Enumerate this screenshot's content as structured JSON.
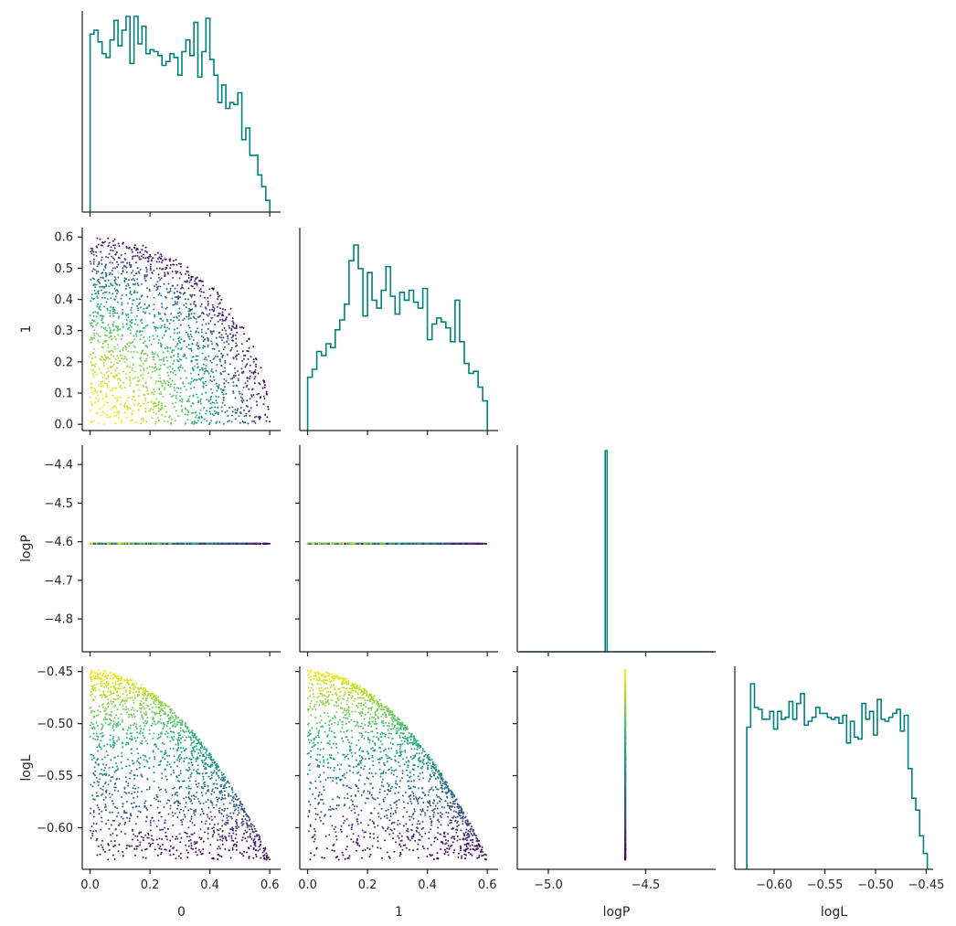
{
  "chart_data": {
    "type": "corner-plot",
    "parameters": [
      "0",
      "1",
      "logP",
      "logL"
    ],
    "grid": false,
    "colormap": "viridis",
    "color_by": "logL",
    "hist_color": "#008080",
    "ranges": {
      "0": [
        -0.02,
        0.63
      ],
      "1": [
        -0.02,
        0.63
      ],
      "logP": [
        -4.885,
        -4.35
      ],
      "logL": [
        -0.64,
        -0.445
      ],
      "logP_hist_x": [
        -5.15,
        -4.15
      ],
      "logL_hist_x": [
        -0.637,
        -0.445
      ]
    },
    "ticks": {
      "0_x": [
        {
          "v": 0.0,
          "label": "0.0"
        },
        {
          "v": 0.2,
          "label": "0.2"
        },
        {
          "v": 0.4,
          "label": "0.4"
        },
        {
          "v": 0.6,
          "label": "0.6"
        }
      ],
      "1_x": [
        {
          "v": 0.0,
          "label": "0.0"
        },
        {
          "v": 0.2,
          "label": "0.2"
        },
        {
          "v": 0.4,
          "label": "0.4"
        },
        {
          "v": 0.6,
          "label": "0.6"
        }
      ],
      "logP_x": [
        {
          "v": -5.0,
          "label": "−5.0"
        },
        {
          "v": -4.5,
          "label": "−4.5"
        }
      ],
      "logL_x": [
        {
          "v": -0.6,
          "label": "−0.60"
        },
        {
          "v": -0.55,
          "label": "−0.55"
        },
        {
          "v": -0.5,
          "label": "−0.50"
        },
        {
          "v": -0.45,
          "label": "−0.45"
        }
      ],
      "1_y": [
        {
          "v": 0.0,
          "label": "0.0"
        },
        {
          "v": 0.1,
          "label": "0.1"
        },
        {
          "v": 0.2,
          "label": "0.2"
        },
        {
          "v": 0.3,
          "label": "0.3"
        },
        {
          "v": 0.4,
          "label": "0.4"
        },
        {
          "v": 0.5,
          "label": "0.5"
        },
        {
          "v": 0.6,
          "label": "0.6"
        }
      ],
      "logP_y": [
        {
          "v": -4.4,
          "label": "−4.4"
        },
        {
          "v": -4.5,
          "label": "−4.5"
        },
        {
          "v": -4.6,
          "label": "−4.6"
        },
        {
          "v": -4.7,
          "label": "−4.7"
        },
        {
          "v": -4.8,
          "label": "−4.8"
        }
      ],
      "logL_y": [
        {
          "v": -0.45,
          "label": "−0.45"
        },
        {
          "v": -0.5,
          "label": "−0.50"
        },
        {
          "v": -0.55,
          "label": "−0.55"
        },
        {
          "v": -0.6,
          "label": "−0.60"
        }
      ]
    },
    "xlabels": [
      "0",
      "1",
      "logP",
      "logL"
    ],
    "ylabels": [
      "",
      "1",
      "logP",
      "logL"
    ],
    "logP_value": -4.605,
    "histograms": {
      "0": {
        "range": [
          0.0,
          0.6
        ],
        "rel_heights": [
          0.91,
          0.93,
          0.87,
          0.81,
          0.79,
          0.88,
          0.98,
          0.85,
          0.93,
          1.0,
          0.76,
          1.0,
          0.86,
          0.95,
          0.81,
          0.83,
          0.82,
          0.8,
          0.75,
          0.77,
          0.81,
          0.79,
          0.7,
          0.82,
          0.88,
          0.8,
          0.97,
          0.69,
          0.82,
          0.99,
          0.78,
          0.7,
          0.56,
          0.65,
          0.53,
          0.56,
          0.55,
          0.61,
          0.37,
          0.43,
          0.29,
          0.29,
          0.19,
          0.13,
          0.06
        ]
      },
      "1": {
        "range": [
          0.0,
          0.6
        ],
        "rel_heights": [
          0.27,
          0.31,
          0.4,
          0.38,
          0.44,
          0.42,
          0.51,
          0.56,
          0.64,
          0.86,
          0.94,
          0.82,
          0.58,
          0.8,
          0.66,
          0.62,
          0.71,
          0.83,
          0.68,
          0.59,
          0.7,
          0.66,
          0.71,
          0.65,
          0.62,
          0.72,
          0.46,
          0.54,
          0.57,
          0.55,
          0.52,
          0.45,
          0.66,
          0.45,
          0.34,
          0.29,
          0.3,
          0.22,
          0.15
        ]
      },
      "logP": {
        "range": [
          -5.15,
          -4.15
        ],
        "rel_heights": [
          0,
          0,
          0,
          0,
          0,
          0,
          0,
          0,
          0,
          0,
          0,
          0,
          0,
          0,
          0,
          0,
          0,
          0,
          0,
          0,
          0,
          0,
          0,
          0,
          0,
          0,
          0,
          0,
          0,
          0,
          0,
          0,
          0,
          0,
          0,
          0,
          0,
          0,
          0,
          0,
          0,
          0,
          0,
          0,
          0,
          0,
          1,
          0,
          0,
          0,
          0,
          0,
          0,
          0,
          0,
          0,
          0,
          0,
          0,
          0,
          0,
          0,
          0,
          0,
          0,
          0,
          0,
          0,
          0,
          0,
          0,
          0,
          0,
          0,
          0,
          0,
          0,
          0,
          0,
          0,
          0,
          0,
          0,
          0,
          0,
          0,
          0,
          0,
          0,
          0,
          0,
          0,
          0,
          0,
          0,
          0,
          0,
          0,
          0,
          0,
          0,
          0,
          0,
          0
        ]
      },
      "logL": {
        "range": [
          -0.627,
          -0.449
        ],
        "rel_heights": [
          0.72,
          0.94,
          0.82,
          0.81,
          0.76,
          0.76,
          0.8,
          0.71,
          0.8,
          0.76,
          0.77,
          0.85,
          0.76,
          0.84,
          0.89,
          0.73,
          0.75,
          0.77,
          0.82,
          0.79,
          0.79,
          0.77,
          0.76,
          0.77,
          0.74,
          0.78,
          0.64,
          0.75,
          0.67,
          0.66,
          0.84,
          0.76,
          0.8,
          0.68,
          0.86,
          0.76,
          0.75,
          0.77,
          0.79,
          0.81,
          0.7,
          0.78,
          0.51,
          0.36,
          0.3,
          0.17,
          0.08
        ]
      }
    },
    "scatter_note": "samples with 0,1 >= 0 and 0^2 + 1^2 <= 0.6^2; logL decreases with radius; logP constant"
  }
}
